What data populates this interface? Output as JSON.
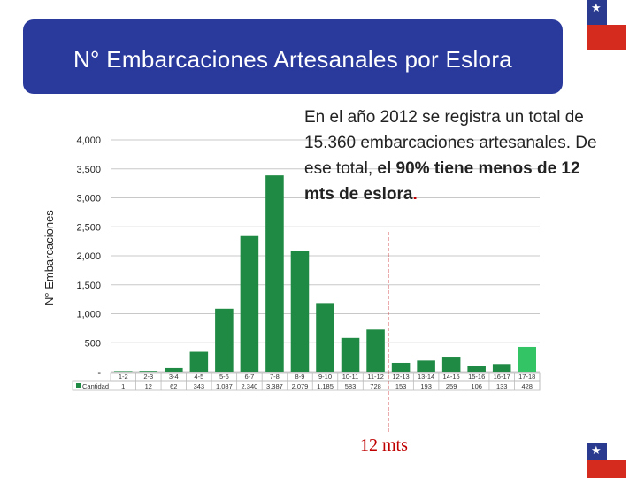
{
  "slide": {
    "title": "N° Embarcaciones Artesanales por Eslora",
    "note_part1": "En el año 2012 se registra un total de 15.360 embarcaciones artesanales.  De ese total, ",
    "note_bold": "el 90% tiene menos de 12 mts de eslora",
    "note_end": ".",
    "marker_label": "12 mts"
  },
  "chart_data": {
    "type": "bar",
    "ylabel": "N° Embarcaciones",
    "ylim": [
      0,
      4000
    ],
    "yticks": [
      "-",
      "500",
      "1,000",
      "1,500",
      "2,000",
      "2,500",
      "3,000",
      "3,500",
      "4,000"
    ],
    "grid": true,
    "legend": "bottom-left",
    "series": [
      {
        "name": "Cantidad",
        "categories": [
          "1-2",
          "2-3",
          "3-4",
          "4-5",
          "5-6",
          "6-7",
          "7-8",
          "8-9",
          "9-10",
          "10-11",
          "11-12",
          "12-13",
          "13-14",
          "14-15",
          "15-16",
          "16-17",
          "17-18"
        ],
        "values": [
          1,
          12,
          62,
          343,
          1087,
          2340,
          3387,
          2079,
          1185,
          583,
          728,
          153,
          193,
          259,
          106,
          133,
          428
        ],
        "labels": [
          "1",
          "12",
          "62",
          "343",
          "1,087",
          "2,340",
          "3,387",
          "2,079",
          "1,185",
          "583",
          "728",
          "153",
          "193",
          "259",
          "106",
          "133",
          "428"
        ]
      }
    ],
    "bar_color": "#1f8a43",
    "last_bar_color": "#33c466",
    "marker_color": "#c00000"
  }
}
